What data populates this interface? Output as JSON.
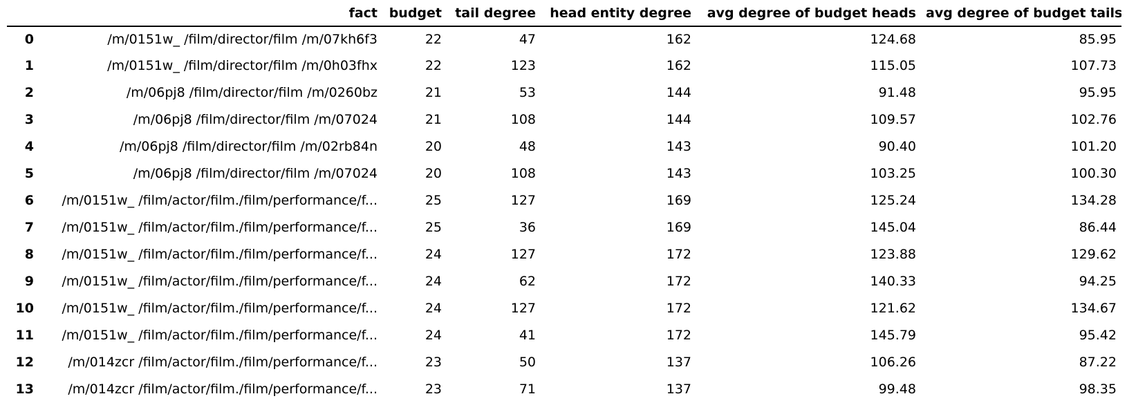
{
  "table": {
    "columns": [
      "",
      "fact",
      "budget",
      "tail degree",
      "head entity degree",
      "avg degree of budget heads",
      "avg degree of budget tails"
    ],
    "rows": [
      [
        "0",
        "/m/0151w_ /film/director/film /m/07kh6f3",
        "22",
        "47",
        "162",
        "124.68",
        "85.95"
      ],
      [
        "1",
        "/m/0151w_ /film/director/film /m/0h03fhx",
        "22",
        "123",
        "162",
        "115.05",
        "107.73"
      ],
      [
        "2",
        "/m/06pj8 /film/director/film /m/0260bz",
        "21",
        "53",
        "144",
        "91.48",
        "95.95"
      ],
      [
        "3",
        "/m/06pj8 /film/director/film /m/07024",
        "21",
        "108",
        "144",
        "109.57",
        "102.76"
      ],
      [
        "4",
        "/m/06pj8 /film/director/film /m/02rb84n",
        "20",
        "48",
        "143",
        "90.40",
        "101.20"
      ],
      [
        "5",
        "/m/06pj8 /film/director/film /m/07024",
        "20",
        "108",
        "143",
        "103.25",
        "100.30"
      ],
      [
        "6",
        "/m/0151w_ /film/actor/film./film/performance/f...",
        "25",
        "127",
        "169",
        "125.24",
        "134.28"
      ],
      [
        "7",
        "/m/0151w_ /film/actor/film./film/performance/f...",
        "25",
        "36",
        "169",
        "145.04",
        "86.44"
      ],
      [
        "8",
        "/m/0151w_ /film/actor/film./film/performance/f...",
        "24",
        "127",
        "172",
        "123.88",
        "129.62"
      ],
      [
        "9",
        "/m/0151w_ /film/actor/film./film/performance/f...",
        "24",
        "62",
        "172",
        "140.33",
        "94.25"
      ],
      [
        "10",
        "/m/0151w_ /film/actor/film./film/performance/f...",
        "24",
        "127",
        "172",
        "121.62",
        "134.67"
      ],
      [
        "11",
        "/m/0151w_ /film/actor/film./film/performance/f...",
        "24",
        "41",
        "172",
        "145.79",
        "95.42"
      ],
      [
        "12",
        "/m/014zcr /film/actor/film./film/performance/f...",
        "23",
        "50",
        "137",
        "106.26",
        "87.22"
      ],
      [
        "13",
        "/m/014zcr /film/actor/film./film/performance/f...",
        "23",
        "71",
        "137",
        "99.48",
        "98.35"
      ]
    ]
  }
}
